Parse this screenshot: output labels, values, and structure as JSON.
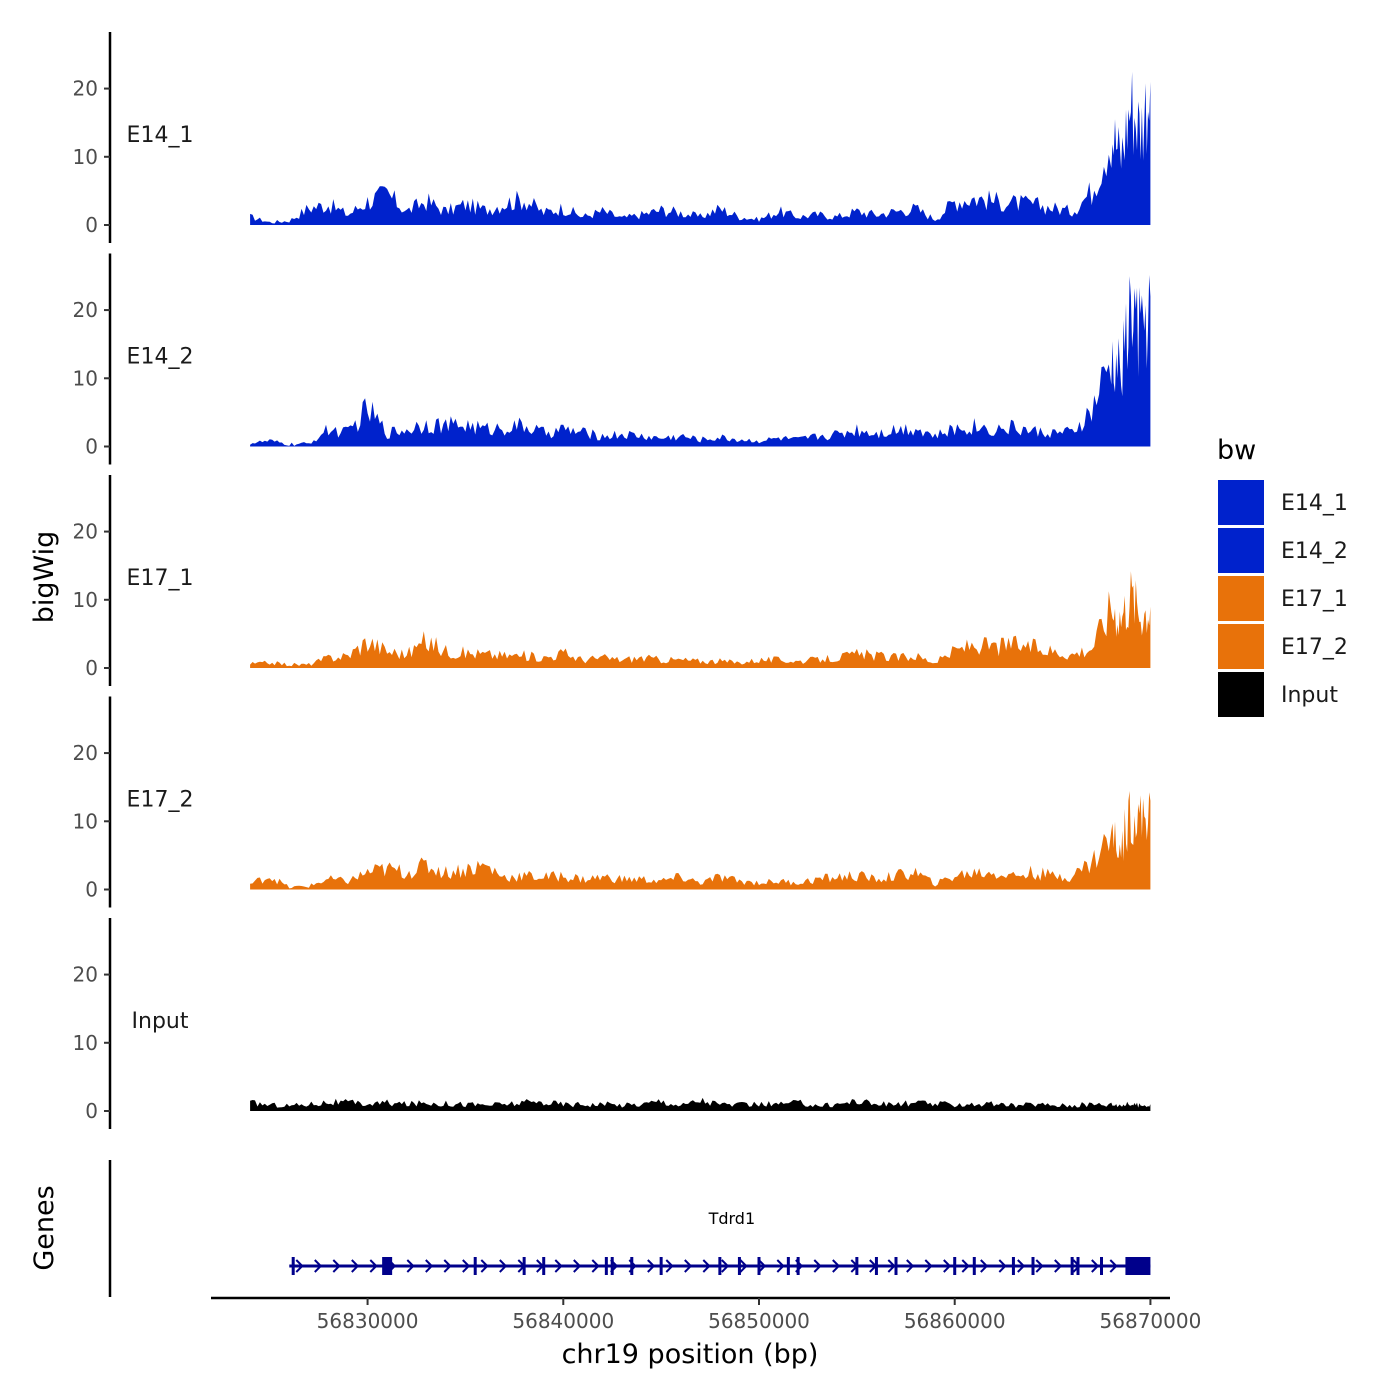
{
  "chart_data": {
    "type": "area",
    "title": "",
    "chromosome": "chr19",
    "xlabel": "chr19 position (bp)",
    "ylabel": "bigWig",
    "genes_label": "Genes",
    "xlim": [
      56822000,
      56871000
    ],
    "data_start": 56824000,
    "data_end": 56870000,
    "ylim": [
      0,
      28
    ],
    "y_ticks": [
      0,
      10,
      20
    ],
    "y_tick_labels": [
      "0",
      "10",
      "20"
    ],
    "x_ticks": [
      56830000,
      56840000,
      56850000,
      56860000,
      56870000
    ],
    "x_tick_labels": [
      "56830000",
      "56840000",
      "56850000",
      "56860000",
      "56870000"
    ],
    "legend": {
      "title": "bw",
      "position": "right",
      "entries": [
        {
          "label": "E14_1",
          "color": "#0022cc"
        },
        {
          "label": "E14_2",
          "color": "#0022cc"
        },
        {
          "label": "E17_1",
          "color": "#e8720a"
        },
        {
          "label": "E17_2",
          "color": "#e8720a"
        },
        {
          "label": "Input",
          "color": "#000000"
        }
      ]
    },
    "series": [
      {
        "name": "E14_1",
        "color": "#0022cc",
        "x": [
          56824000,
          56825000,
          56826000,
          56827000,
          56828000,
          56829000,
          56830000,
          56831000,
          56832000,
          56833000,
          56834000,
          56835000,
          56836000,
          56837000,
          56838000,
          56839000,
          56840000,
          56841000,
          56842000,
          56843000,
          56844000,
          56845000,
          56846000,
          56847000,
          56848000,
          56849000,
          56850000,
          56851000,
          56852000,
          56853000,
          56854000,
          56855000,
          56856000,
          56857000,
          56858000,
          56859000,
          56860000,
          56861000,
          56862000,
          56863000,
          56864000,
          56865000,
          56866000,
          56867000,
          56868000,
          56868500,
          56869000,
          56869500,
          56870000
        ],
        "values": [
          1.2,
          0.4,
          0.6,
          2.5,
          3.0,
          1.5,
          3.5,
          4.5,
          2.0,
          3.5,
          2.0,
          3.0,
          2.2,
          3.2,
          3.8,
          1.8,
          2.5,
          1.2,
          2.0,
          1.0,
          1.5,
          2.2,
          1.8,
          1.2,
          2.4,
          1.2,
          0.8,
          2.0,
          1.2,
          1.5,
          1.2,
          2.0,
          1.5,
          2.0,
          2.4,
          0.8,
          3.5,
          4.0,
          3.5,
          3.2,
          3.0,
          2.5,
          2.0,
          5.0,
          14.0,
          10.0,
          18.0,
          14.0,
          21.0
        ]
      },
      {
        "name": "E14_2",
        "color": "#0022cc",
        "x": [
          56824000,
          56825000,
          56826000,
          56827000,
          56828000,
          56829000,
          56830000,
          56831000,
          56832000,
          56833000,
          56834000,
          56835000,
          56836000,
          56837000,
          56838000,
          56839000,
          56840000,
          56841000,
          56842000,
          56843000,
          56844000,
          56845000,
          56846000,
          56847000,
          56848000,
          56849000,
          56850000,
          56851000,
          56852000,
          56853000,
          56854000,
          56855000,
          56856000,
          56857000,
          56858000,
          56859000,
          56860000,
          56861000,
          56862000,
          56863000,
          56864000,
          56865000,
          56866000,
          56867000,
          56868000,
          56868500,
          56869000,
          56869500,
          56870000
        ],
        "values": [
          0.5,
          0.8,
          0.3,
          0.4,
          2.5,
          2.0,
          5.5,
          2.0,
          2.5,
          3.5,
          3.0,
          3.2,
          2.5,
          2.8,
          3.0,
          2.0,
          2.5,
          2.0,
          1.5,
          1.8,
          1.5,
          1.2,
          1.5,
          1.0,
          1.3,
          1.0,
          0.8,
          1.2,
          1.0,
          1.5,
          1.8,
          2.5,
          2.0,
          2.5,
          2.8,
          1.5,
          2.5,
          3.0,
          2.5,
          2.8,
          2.2,
          2.0,
          2.0,
          5.0,
          12.0,
          11.0,
          20.0,
          16.0,
          22.0
        ]
      },
      {
        "name": "E17_1",
        "color": "#e8720a",
        "x": [
          56824000,
          56825000,
          56826000,
          56827000,
          56828000,
          56829000,
          56830000,
          56831000,
          56832000,
          56833000,
          56834000,
          56835000,
          56836000,
          56837000,
          56838000,
          56839000,
          56840000,
          56841000,
          56842000,
          56843000,
          56844000,
          56845000,
          56846000,
          56847000,
          56848000,
          56849000,
          56850000,
          56851000,
          56852000,
          56853000,
          56854000,
          56855000,
          56856000,
          56857000,
          56858000,
          56859000,
          56860000,
          56861000,
          56862000,
          56863000,
          56864000,
          56865000,
          56866000,
          56867000,
          56868000,
          56868500,
          56869000,
          56869500,
          56870000
        ],
        "values": [
          0.6,
          0.8,
          0.5,
          0.5,
          1.5,
          1.8,
          4.0,
          2.5,
          2.0,
          4.0,
          2.5,
          2.2,
          2.0,
          1.8,
          1.8,
          1.5,
          2.2,
          1.2,
          1.5,
          1.2,
          1.5,
          1.2,
          1.2,
          1.0,
          1.0,
          0.8,
          1.2,
          1.2,
          1.0,
          1.2,
          1.5,
          2.0,
          1.8,
          1.5,
          1.8,
          0.8,
          2.5,
          3.5,
          3.0,
          3.5,
          3.0,
          2.5,
          2.0,
          3.0,
          9.0,
          7.5,
          11.0,
          8.0,
          9.0
        ]
      },
      {
        "name": "E17_2",
        "color": "#e8720a",
        "x": [
          56824000,
          56825000,
          56826000,
          56827000,
          56828000,
          56829000,
          56830000,
          56831000,
          56832000,
          56833000,
          56834000,
          56835000,
          56836000,
          56837000,
          56838000,
          56839000,
          56840000,
          56841000,
          56842000,
          56843000,
          56844000,
          56845000,
          56846000,
          56847000,
          56848000,
          56849000,
          56850000,
          56851000,
          56852000,
          56853000,
          56854000,
          56855000,
          56856000,
          56857000,
          56858000,
          56859000,
          56860000,
          56861000,
          56862000,
          56863000,
          56864000,
          56865000,
          56866000,
          56867000,
          56868000,
          56868500,
          56869000,
          56869500,
          56870000
        ],
        "values": [
          0.8,
          2.0,
          0.3,
          0.5,
          1.5,
          1.2,
          2.5,
          3.0,
          2.5,
          3.5,
          2.5,
          3.0,
          3.5,
          1.8,
          2.0,
          1.8,
          2.0,
          1.5,
          1.8,
          1.5,
          1.5,
          1.2,
          1.8,
          1.0,
          1.8,
          1.2,
          1.0,
          1.2,
          1.0,
          1.5,
          1.8,
          2.0,
          1.5,
          2.0,
          2.5,
          0.8,
          2.0,
          2.5,
          2.5,
          2.0,
          2.5,
          2.0,
          2.0,
          4.0,
          8.0,
          6.0,
          12.0,
          10.0,
          13.0
        ]
      },
      {
        "name": "Input",
        "color": "#000000",
        "x": [
          56824000,
          56825000,
          56826000,
          56827000,
          56828000,
          56829000,
          56830000,
          56831000,
          56832000,
          56833000,
          56834000,
          56835000,
          56836000,
          56837000,
          56838000,
          56839000,
          56840000,
          56841000,
          56842000,
          56843000,
          56844000,
          56845000,
          56846000,
          56847000,
          56848000,
          56849000,
          56850000,
          56851000,
          56852000,
          56853000,
          56854000,
          56855000,
          56856000,
          56857000,
          56858000,
          56859000,
          56860000,
          56861000,
          56862000,
          56863000,
          56864000,
          56865000,
          56866000,
          56867000,
          56868000,
          56868500,
          56869000,
          56869500,
          56870000
        ],
        "values": [
          1.2,
          0.9,
          0.8,
          1.0,
          1.3,
          1.2,
          1.0,
          1.2,
          1.0,
          1.2,
          1.1,
          1.0,
          0.9,
          1.0,
          1.2,
          1.3,
          1.0,
          1.0,
          1.0,
          0.9,
          1.0,
          1.5,
          0.8,
          1.6,
          1.0,
          0.9,
          1.0,
          1.0,
          1.2,
          0.8,
          1.0,
          1.5,
          1.0,
          1.0,
          1.2,
          1.0,
          1.0,
          1.0,
          1.0,
          0.8,
          1.0,
          0.9,
          0.8,
          1.0,
          1.0,
          0.9,
          1.0,
          0.8,
          1.0
        ]
      }
    ],
    "genes": [
      {
        "name": "Tdrd1",
        "strand": "+",
        "start": 56826000,
        "end": 56870000,
        "exons": [
          56826200,
          56831000,
          56835500,
          56838000,
          56839000,
          56842200,
          56842500,
          56843500,
          56845000,
          56848000,
          56849000,
          56850000,
          56851500,
          56852000,
          56855000,
          56856000,
          56857000,
          56860000,
          56861000,
          56863000,
          56864000,
          56866000,
          56866300,
          56867500
        ]
      }
    ]
  }
}
